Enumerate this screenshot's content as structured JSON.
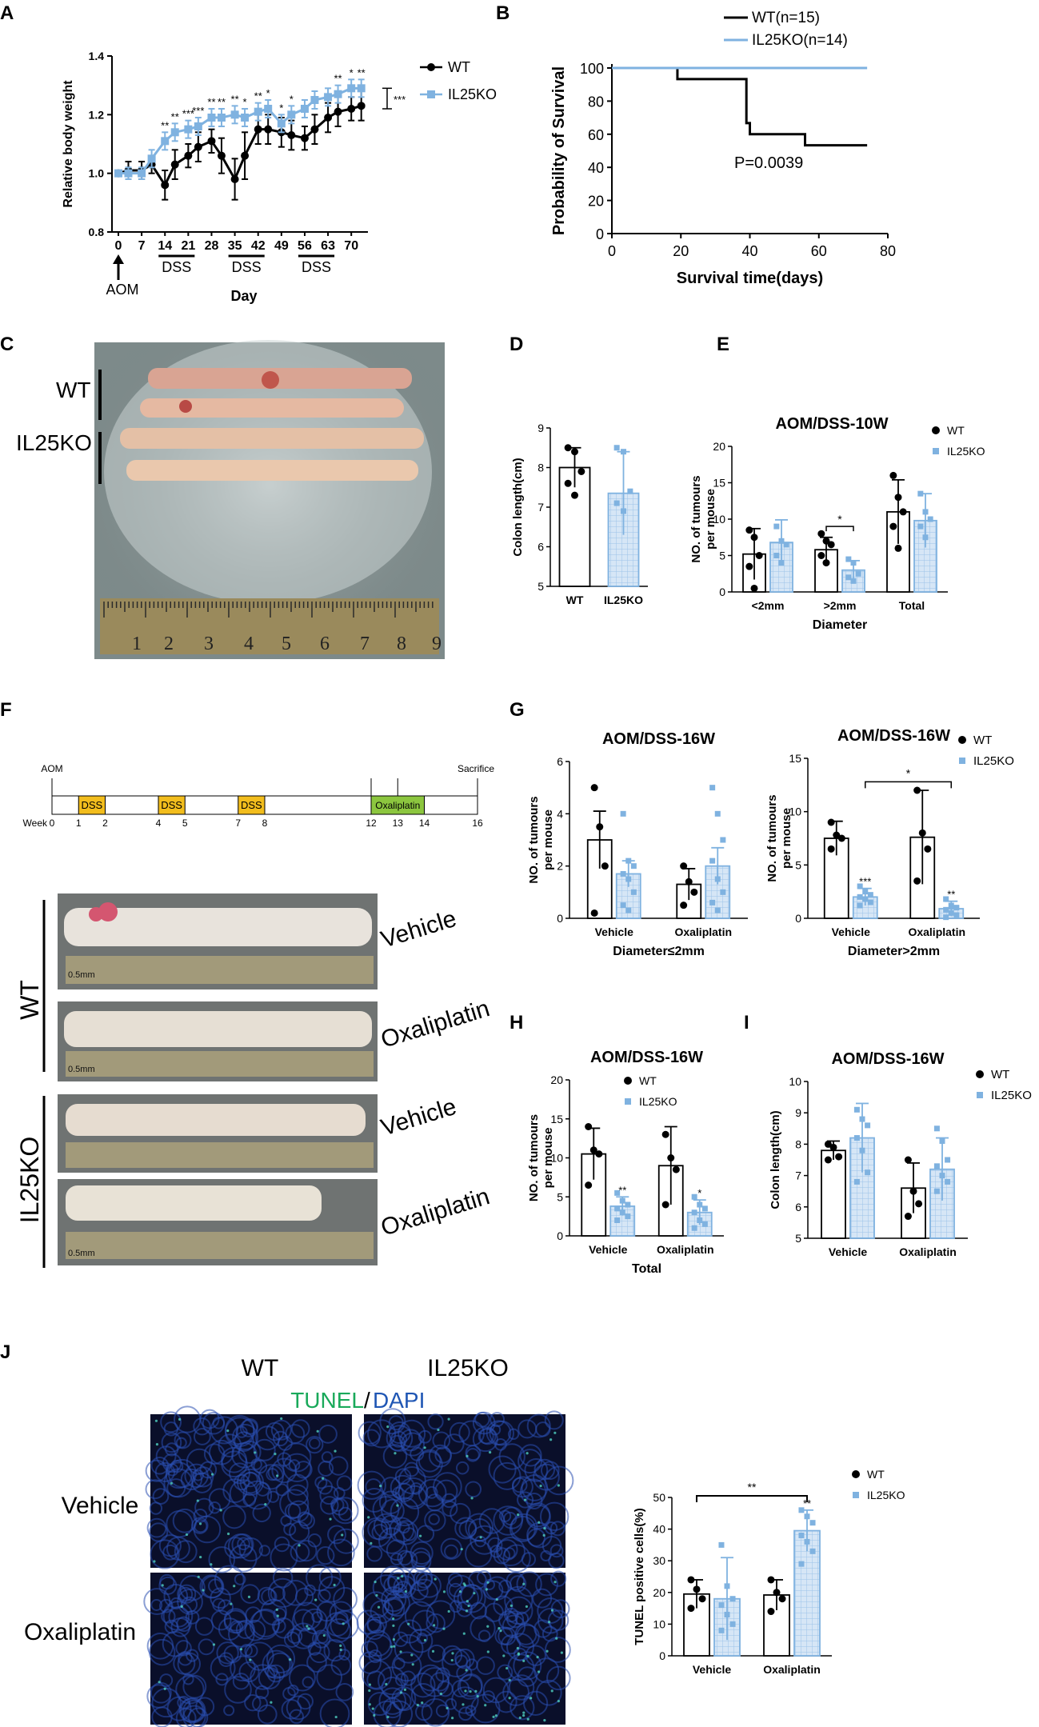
{
  "colors": {
    "wt": "#000000",
    "ko": "#7fb2e0",
    "ko_fill": "#d6e6f6",
    "ko_grid": "#9cc3e8",
    "dss": "#f2bd1d",
    "oxali": "#8cc63f",
    "tunel": "#19a95a",
    "dapi": "#1f56b4"
  },
  "panel_A": {
    "letter": "A",
    "chart_data": {
      "type": "line",
      "ylabel": "Relative body weight",
      "xlabel": "Day",
      "ylim": [
        0.8,
        1.4
      ],
      "yticks": [
        "0.8",
        "1.0",
        "1.2",
        "1.4"
      ],
      "xticks": [
        "0",
        "7",
        "14",
        "21",
        "28",
        "35",
        "42",
        "49",
        "56",
        "63",
        "70"
      ],
      "x": [
        0,
        3,
        7,
        10,
        14,
        17,
        21,
        24,
        28,
        31,
        35,
        38,
        42,
        45,
        49,
        52,
        56,
        59,
        63,
        66,
        70,
        73
      ],
      "series": [
        {
          "name": "WT",
          "values": [
            1.0,
            1.01,
            1.01,
            1.03,
            0.96,
            1.03,
            1.06,
            1.09,
            1.11,
            1.06,
            0.98,
            1.06,
            1.15,
            1.15,
            1.14,
            1.13,
            1.12,
            1.15,
            1.19,
            1.21,
            1.22,
            1.23
          ],
          "err": [
            0,
            0.03,
            0.03,
            0.03,
            0.05,
            0.05,
            0.04,
            0.05,
            0.04,
            0.06,
            0.07,
            0.08,
            0.05,
            0.05,
            0.05,
            0.05,
            0.04,
            0.05,
            0.05,
            0.05,
            0.04,
            0.05
          ]
        },
        {
          "name": "IL25KO",
          "values": [
            1.0,
            1.0,
            1.0,
            1.05,
            1.11,
            1.14,
            1.15,
            1.16,
            1.19,
            1.19,
            1.2,
            1.19,
            1.21,
            1.22,
            1.17,
            1.2,
            1.22,
            1.25,
            1.26,
            1.27,
            1.29,
            1.29
          ],
          "err": [
            0,
            0.02,
            0.02,
            0.03,
            0.03,
            0.03,
            0.03,
            0.03,
            0.03,
            0.03,
            0.03,
            0.03,
            0.03,
            0.03,
            0.03,
            0.03,
            0.03,
            0.03,
            0.03,
            0.03,
            0.03,
            0.03
          ]
        }
      ],
      "sig": [
        "**",
        "**",
        "***",
        "***",
        "**",
        "**",
        "**",
        "*",
        "**",
        "*",
        "*",
        "*",
        "**",
        "*",
        "**"
      ],
      "bracket_label": "***",
      "dss_label": "DSS",
      "aom_label": "AOM"
    }
  },
  "panel_B": {
    "letter": "B",
    "chart_data": {
      "type": "line",
      "ylabel": "Probability of Survival",
      "xlabel": "Survival time(days)",
      "xlim": [
        0,
        80
      ],
      "ylim": [
        0,
        100
      ],
      "xticks": [
        "0",
        "20",
        "40",
        "60",
        "80"
      ],
      "yticks": [
        "0",
        "20",
        "40",
        "60",
        "80",
        "100"
      ],
      "series": [
        {
          "name": "WT(n=15)",
          "steps": [
            [
              0,
              100
            ],
            [
              19,
              100
            ],
            [
              19,
              93.3
            ],
            [
              39,
              93.3
            ],
            [
              39,
              66.7
            ],
            [
              40,
              66.7
            ],
            [
              40,
              60
            ],
            [
              56,
              60
            ],
            [
              56,
              53.3
            ],
            [
              74,
              53.3
            ]
          ]
        },
        {
          "name": "IL25KO(n=14)",
          "steps": [
            [
              0,
              100
            ],
            [
              74,
              100
            ]
          ]
        }
      ],
      "annotation": "P=0.0039"
    }
  },
  "panel_C": {
    "letter": "C",
    "labels": [
      "WT",
      "IL25KO"
    ]
  },
  "panel_D": {
    "letter": "D",
    "chart_data": {
      "type": "bar",
      "ylabel": "Colon length(cm)",
      "ylim": [
        5,
        9
      ],
      "yticks": [
        "5",
        "6",
        "7",
        "8",
        "9"
      ],
      "categories": [
        "WT",
        "IL25KO"
      ],
      "values": [
        8.0,
        7.35
      ],
      "err": [
        0.5,
        1.05
      ],
      "points": [
        [
          8.5,
          8.4,
          7.9,
          7.6,
          7.3
        ],
        [
          8.5,
          8.4,
          7.4,
          7.1,
          6.9
        ]
      ]
    }
  },
  "panel_E": {
    "letter": "E",
    "chart_data": {
      "type": "bar",
      "title": "AOM/DSS-10W",
      "ylabel": "NO. of tumours per mouse",
      "xlabel": "Diameter",
      "ylim": [
        0,
        20
      ],
      "yticks": [
        "0",
        "5",
        "10",
        "15",
        "20"
      ],
      "categories": [
        "<2mm",
        ">2mm",
        "Total"
      ],
      "series": [
        {
          "name": "WT",
          "values": [
            5.2,
            5.8,
            11.0
          ],
          "err": [
            3.5,
            1.7,
            4.4
          ]
        },
        {
          "name": "IL25KO",
          "values": [
            6.8,
            3.0,
            9.8
          ],
          "err": [
            3.1,
            1.3,
            3.7
          ]
        }
      ],
      "points": [
        [
          [
            8.5,
            7.5,
            5,
            3.5,
            0.5
          ],
          [
            8,
            7,
            6.5,
            5,
            4
          ],
          [
            16,
            13,
            11,
            9,
            6
          ]
        ],
        [
          [
            9,
            7,
            6.5,
            5,
            4
          ],
          [
            4.5,
            4,
            2.5,
            2,
            1.5
          ],
          [
            13.5,
            11,
            10,
            9,
            7.5
          ]
        ]
      ],
      "sig": [
        "*"
      ]
    }
  },
  "panel_F": {
    "letter": "F",
    "timeline": {
      "aom": "AOM",
      "sacrifice": "Sacrifice",
      "week_label": "Week",
      "weeks": [
        "0",
        "1",
        "2",
        "4",
        "5",
        "7",
        "8",
        "12",
        "13",
        "14",
        "16"
      ],
      "dss": "DSS",
      "oxaliplatin": "Oxaliplatin"
    },
    "groups": [
      "WT",
      "IL25KO"
    ],
    "treatments": [
      "Vehicle",
      "Oxaliplatin",
      "Vehicle",
      "Oxaliplatin"
    ],
    "ruler_label": "0.5mm"
  },
  "panel_G1": {
    "letter": "G",
    "chart_data": {
      "type": "bar",
      "title": "AOM/DSS-16W",
      "ylabel": "NO. of tumours per mouse",
      "xlabel": "Diameter≤2mm",
      "ylim": [
        0,
        6
      ],
      "yticks": [
        "0",
        "2",
        "4",
        "6"
      ],
      "categories": [
        "Vehicle",
        "Oxaliplatin"
      ],
      "series": [
        {
          "name": "WT",
          "values": [
            3.0,
            1.3
          ],
          "err": [
            1.1,
            0.6
          ]
        },
        {
          "name": "IL25KO",
          "values": [
            1.7,
            2.0
          ],
          "err": [
            0.5,
            0.7
          ]
        }
      ],
      "points": [
        [
          [
            5,
            3.5,
            2,
            0.2
          ],
          [
            2,
            1.4,
            1,
            0.5
          ]
        ],
        [
          [
            4,
            2.2,
            2,
            1.7,
            1.5,
            1,
            0.5,
            0.3
          ],
          [
            5,
            4,
            3,
            2.2,
            1.5,
            1,
            0.6,
            0.3
          ]
        ]
      ]
    }
  },
  "panel_G2": {
    "chart_data": {
      "type": "bar",
      "title": "AOM/DSS-16W",
      "ylabel": "NO. of tumours per mouse",
      "xlabel": "Diameter>2mm",
      "ylim": [
        0,
        15
      ],
      "yticks": [
        "0",
        "5",
        "10",
        "15"
      ],
      "categories": [
        "Vehicle",
        "Oxaliplatin"
      ],
      "series": [
        {
          "name": "WT",
          "values": [
            7.5,
            7.6
          ],
          "err": [
            1.6,
            4.4
          ]
        },
        {
          "name": "IL25KO",
          "values": [
            2.0,
            0.9
          ],
          "err": [
            0.8,
            0.7
          ]
        }
      ],
      "points": [
        [
          [
            9,
            7.8,
            7.5,
            6.5
          ],
          [
            12,
            8,
            6.5,
            3.5
          ]
        ],
        [
          [
            3,
            2.5,
            2.2,
            2,
            1.8,
            1.5,
            1.2
          ],
          [
            1.8,
            1.2,
            1,
            0.8,
            0.5,
            0.3,
            0.1
          ]
        ]
      ],
      "sig_bar": [
        "***",
        "**"
      ],
      "bracket_label": "*"
    }
  },
  "panel_H": {
    "letter": "H",
    "chart_data": {
      "type": "bar",
      "title": "AOM/DSS-16W",
      "ylabel": "NO. of tumours per mouse",
      "xlabel": "Total",
      "ylim": [
        0,
        20
      ],
      "yticks": [
        "0",
        "5",
        "10",
        "15",
        "20"
      ],
      "categories": [
        "Vehicle",
        "Oxaliplatin"
      ],
      "series": [
        {
          "name": "WT",
          "values": [
            10.5,
            9.0
          ],
          "err": [
            3.3,
            5.0
          ]
        },
        {
          "name": "IL25KO",
          "values": [
            3.8,
            3.0
          ],
          "err": [
            1.2,
            1.6
          ]
        }
      ],
      "points": [
        [
          [
            14,
            11,
            10.5,
            6.5
          ],
          [
            13,
            10,
            8.5,
            4
          ]
        ],
        [
          [
            5.5,
            4.5,
            4,
            3.5,
            3,
            2.5,
            2
          ],
          [
            5,
            4,
            3.5,
            3,
            2,
            1.5,
            1
          ]
        ]
      ],
      "sig_bar": [
        "**",
        "*"
      ]
    }
  },
  "panel_I": {
    "letter": "I",
    "chart_data": {
      "type": "bar",
      "title": "AOM/DSS-16W",
      "ylabel": "Colon length(cm)",
      "ylim": [
        5,
        10
      ],
      "yticks": [
        "5",
        "6",
        "7",
        "8",
        "9",
        "10"
      ],
      "categories": [
        "Vehicle",
        "Oxaliplatin"
      ],
      "series": [
        {
          "name": "WT",
          "values": [
            7.8,
            6.6
          ],
          "err": [
            0.3,
            0.8
          ]
        },
        {
          "name": "IL25KO",
          "values": [
            8.2,
            7.2
          ],
          "err": [
            1.1,
            1.0
          ]
        }
      ],
      "points": [
        [
          [
            8,
            7.9,
            7.6,
            7.5
          ],
          [
            7.5,
            6.5,
            6.1,
            5.7
          ]
        ],
        [
          [
            9.1,
            8.8,
            8.6,
            8.2,
            7.8,
            7.1,
            6.8
          ],
          [
            8.5,
            8.1,
            7.5,
            7.3,
            7.0,
            6.8,
            6.5
          ]
        ]
      ]
    }
  },
  "panel_J": {
    "letter": "J",
    "col_labels": [
      "WT",
      "IL25KO"
    ],
    "stain_tunel": "TUNEL",
    "stain_sep": "/",
    "stain_dapi": "DAPI",
    "row_labels": [
      "Vehicle",
      "Oxaliplatin"
    ],
    "chart_data": {
      "type": "bar",
      "ylabel": "TUNEL positive cells(%)",
      "ylim": [
        0,
        50
      ],
      "yticks": [
        "0",
        "10",
        "20",
        "30",
        "40",
        "50"
      ],
      "categories": [
        "Vehicle",
        "Oxaliplatin"
      ],
      "series": [
        {
          "name": "WT",
          "values": [
            19.5,
            19.2
          ],
          "err": [
            4.5,
            4.8
          ]
        },
        {
          "name": "IL25KO",
          "values": [
            18.0,
            39.5
          ],
          "err": [
            13.0,
            6.5
          ]
        }
      ],
      "points": [
        [
          [
            24,
            21,
            18,
            15
          ],
          [
            24,
            20,
            18,
            14
          ]
        ],
        [
          [
            35,
            22,
            18,
            16,
            13,
            10,
            8
          ],
          [
            46,
            44,
            42,
            38,
            36,
            33,
            29
          ]
        ]
      ],
      "sig_bar": [
        "**"
      ],
      "bracket_label": "**"
    }
  }
}
